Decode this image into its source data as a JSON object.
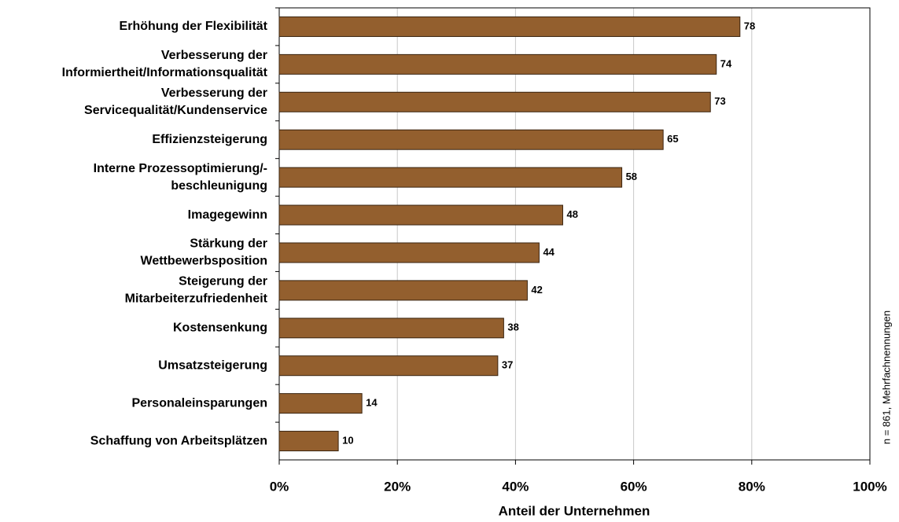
{
  "chart_data": {
    "type": "bar",
    "orientation": "horizontal",
    "categories": [
      [
        "Erhöhung der Flexibilität"
      ],
      [
        "Verbesserung der",
        "Informiertheit/Informationsqualität"
      ],
      [
        "Verbesserung der",
        "Servicequalität/Kundenservice"
      ],
      [
        "Effizienzsteigerung"
      ],
      [
        "Interne Prozessoptimierung/-",
        "beschleunigung"
      ],
      [
        "Imagegewinn"
      ],
      [
        "Stärkung der",
        "Wettbewerbsposition"
      ],
      [
        "Steigerung der",
        "Mitarbeiterzufriedenheit"
      ],
      [
        "Kostensenkung"
      ],
      [
        "Umsatzsteigerung"
      ],
      [
        "Personaleinsparungen"
      ],
      [
        "Schaffung von Arbeitsplätzen"
      ]
    ],
    "values": [
      78,
      74,
      73,
      65,
      58,
      48,
      44,
      42,
      38,
      37,
      14,
      10
    ],
    "color": "#935f2e",
    "xlim": [
      0,
      100
    ],
    "xticks": [
      {
        "value": 0,
        "label": "0%"
      },
      {
        "value": 20,
        "label": "20%"
      },
      {
        "value": 40,
        "label": "40%"
      },
      {
        "value": 60,
        "label": "60%"
      },
      {
        "value": 80,
        "label": "80%"
      },
      {
        "value": 100,
        "label": "100%"
      }
    ],
    "xlabel": "Anteil der Unternehmen",
    "note": "n = 861, Mehrfachnennungen",
    "grid": true
  }
}
